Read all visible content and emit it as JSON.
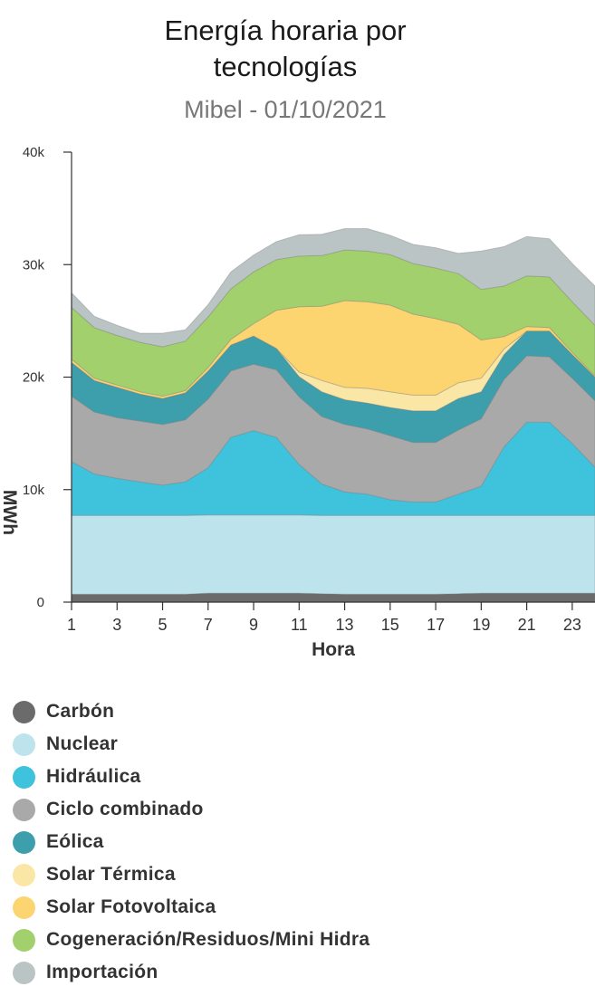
{
  "chart_data": {
    "type": "area",
    "stacked": true,
    "title_lines": [
      "Energía horaria por",
      "tecnologías"
    ],
    "subtitle": "Mibel - 01/10/2021",
    "xlabel": "Hora",
    "ylabel": "MWh",
    "xlim": [
      1,
      24
    ],
    "ylim": [
      0,
      40000
    ],
    "x": [
      1,
      2,
      3,
      4,
      5,
      6,
      7,
      8,
      9,
      10,
      11,
      12,
      13,
      14,
      15,
      16,
      17,
      18,
      19,
      20,
      21,
      22,
      23,
      24
    ],
    "x_ticks": [
      "1",
      "3",
      "5",
      "7",
      "9",
      "11",
      "13",
      "15",
      "17",
      "19",
      "21",
      "23"
    ],
    "y_ticks": [
      "0",
      "10k",
      "20k",
      "30k",
      "40k"
    ],
    "grid": false,
    "legend_position": "bottom",
    "series": [
      {
        "name": "Carbón",
        "color": "#6b6b6b",
        "values": [
          700,
          700,
          700,
          700,
          700,
          700,
          800,
          800,
          800,
          800,
          800,
          750,
          700,
          700,
          700,
          700,
          700,
          750,
          800,
          800,
          800,
          800,
          800,
          800
        ]
      },
      {
        "name": "Nuclear",
        "color": "#bde3ec",
        "values": [
          7000,
          7000,
          7000,
          7000,
          7000,
          7000,
          6950,
          6950,
          6950,
          6950,
          6950,
          6950,
          7000,
          7000,
          7000,
          7000,
          7000,
          6950,
          6900,
          6900,
          6900,
          6900,
          6900,
          6900
        ]
      },
      {
        "name": "Hidráulica",
        "color": "#3fc2dc",
        "values": [
          4800,
          3700,
          3300,
          3000,
          2700,
          3000,
          4200,
          6900,
          7500,
          6900,
          4500,
          2800,
          2100,
          1900,
          1400,
          1200,
          1200,
          1900,
          2600,
          6100,
          8300,
          8300,
          6400,
          4300
        ]
      },
      {
        "name": "Ciclo combinado",
        "color": "#a9a9a9",
        "values": [
          5800,
          5500,
          5400,
          5400,
          5400,
          5500,
          6100,
          5900,
          5900,
          6000,
          6000,
          6000,
          6000,
          5800,
          5700,
          5300,
          5300,
          5700,
          6000,
          6000,
          5900,
          5800,
          5800,
          5900
        ]
      },
      {
        "name": "Eólica",
        "color": "#3c9fab",
        "values": [
          3000,
          2800,
          2700,
          2400,
          2300,
          2400,
          2500,
          2300,
          2500,
          1900,
          1800,
          2200,
          2200,
          2300,
          2500,
          2800,
          2800,
          2800,
          2400,
          2200,
          2200,
          2300,
          2100,
          2100
        ]
      },
      {
        "name": "Solar Térmica",
        "color": "#fae7a6",
        "values": [
          0,
          0,
          0,
          0,
          0,
          0,
          0,
          0,
          0,
          0,
          400,
          1000,
          1100,
          1300,
          1400,
          1400,
          1400,
          1400,
          1200,
          500,
          0,
          0,
          0,
          0
        ]
      },
      {
        "name": "Solar Fotovoltaica",
        "color": "#fcd571",
        "values": [
          300,
          200,
          200,
          200,
          200,
          200,
          300,
          500,
          1100,
          3400,
          5800,
          6600,
          7700,
          7700,
          7700,
          7200,
          6800,
          5200,
          3400,
          1100,
          400,
          300,
          200,
          100
        ]
      },
      {
        "name": "Cogeneración/Residuos/Mini Hidra",
        "color": "#a2d06d",
        "values": [
          4600,
          4500,
          4400,
          4400,
          4400,
          4400,
          4500,
          4500,
          4600,
          4500,
          4500,
          4500,
          4500,
          4500,
          4500,
          4500,
          4500,
          4500,
          4500,
          4500,
          4500,
          4500,
          4500,
          4500
        ]
      },
      {
        "name": "Importación",
        "color": "#bac4c4",
        "values": [
          1300,
          1000,
          900,
          800,
          1200,
          1000,
          1100,
          1500,
          1500,
          1600,
          1900,
          1900,
          1900,
          2000,
          1700,
          1700,
          1800,
          1800,
          3400,
          3500,
          3500,
          3400,
          3400,
          3500
        ]
      }
    ]
  }
}
